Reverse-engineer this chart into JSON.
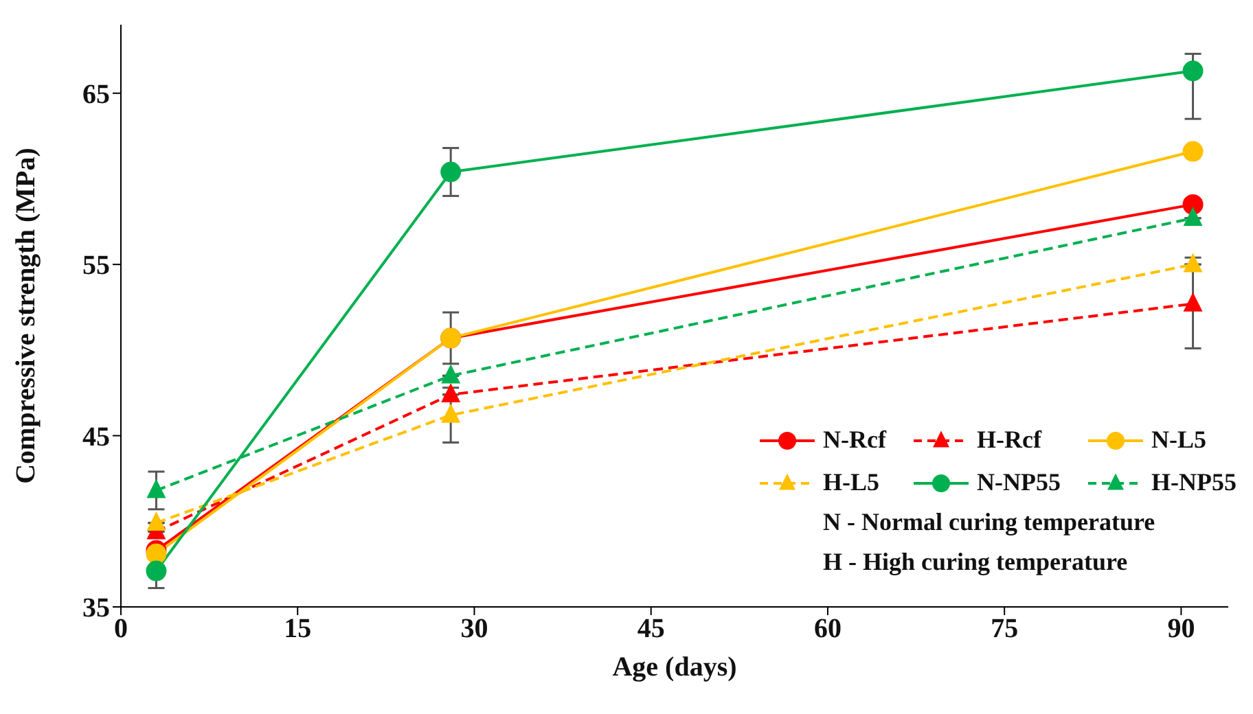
{
  "chart_data": {
    "type": "line",
    "xlabel": "Age (days)",
    "ylabel": "Compressive strength  (MPa)",
    "x": [
      3,
      28,
      91
    ],
    "series": [
      {
        "name": "N-Rcf",
        "color": "#ff0000",
        "values": [
          38.3,
          50.7,
          58.5
        ],
        "marker": "circle",
        "line_style": "solid"
      },
      {
        "name": "H-Rcf",
        "color": "#ff0000",
        "values": [
          39.4,
          47.4,
          52.7
        ],
        "marker": "triangle",
        "line_style": "dashed",
        "errors": [
          null,
          null,
          [
            50.1,
            55.4
          ]
        ]
      },
      {
        "name": "N-L5",
        "color": "#ffc000",
        "values": [
          38.1,
          50.7,
          61.6
        ],
        "marker": "circle",
        "line_style": "solid",
        "errors": [
          null,
          1.5,
          null
        ]
      },
      {
        "name": "H-L5",
        "color": "#ffc000",
        "values": [
          39.9,
          46.2,
          55.0
        ],
        "marker": "triangle",
        "line_style": "dashed",
        "errors": [
          null,
          1.6,
          null
        ]
      },
      {
        "name": "N-NP55",
        "color": "#00b050",
        "values": [
          37.1,
          60.4,
          66.3
        ],
        "marker": "circle",
        "line_style": "solid",
        "errors": [
          1.0,
          1.4,
          [
            63.5,
            67.3
          ]
        ]
      },
      {
        "name": "H-NP55",
        "color": "#00b050",
        "values": [
          41.8,
          48.5,
          57.7
        ],
        "marker": "triangle",
        "line_style": "dashed",
        "errors": [
          1.1,
          null,
          null
        ]
      }
    ],
    "xlim": [
      0,
      94
    ],
    "xticks": [
      0,
      15,
      30,
      45,
      60,
      75,
      90
    ],
    "ylim": [
      35,
      69
    ],
    "yticks": [
      35,
      45,
      55,
      65
    ],
    "grid": false,
    "legend": "bottom right",
    "annotations": [
      "N - Normal curing temperature",
      "H - High curing temperature"
    ]
  }
}
